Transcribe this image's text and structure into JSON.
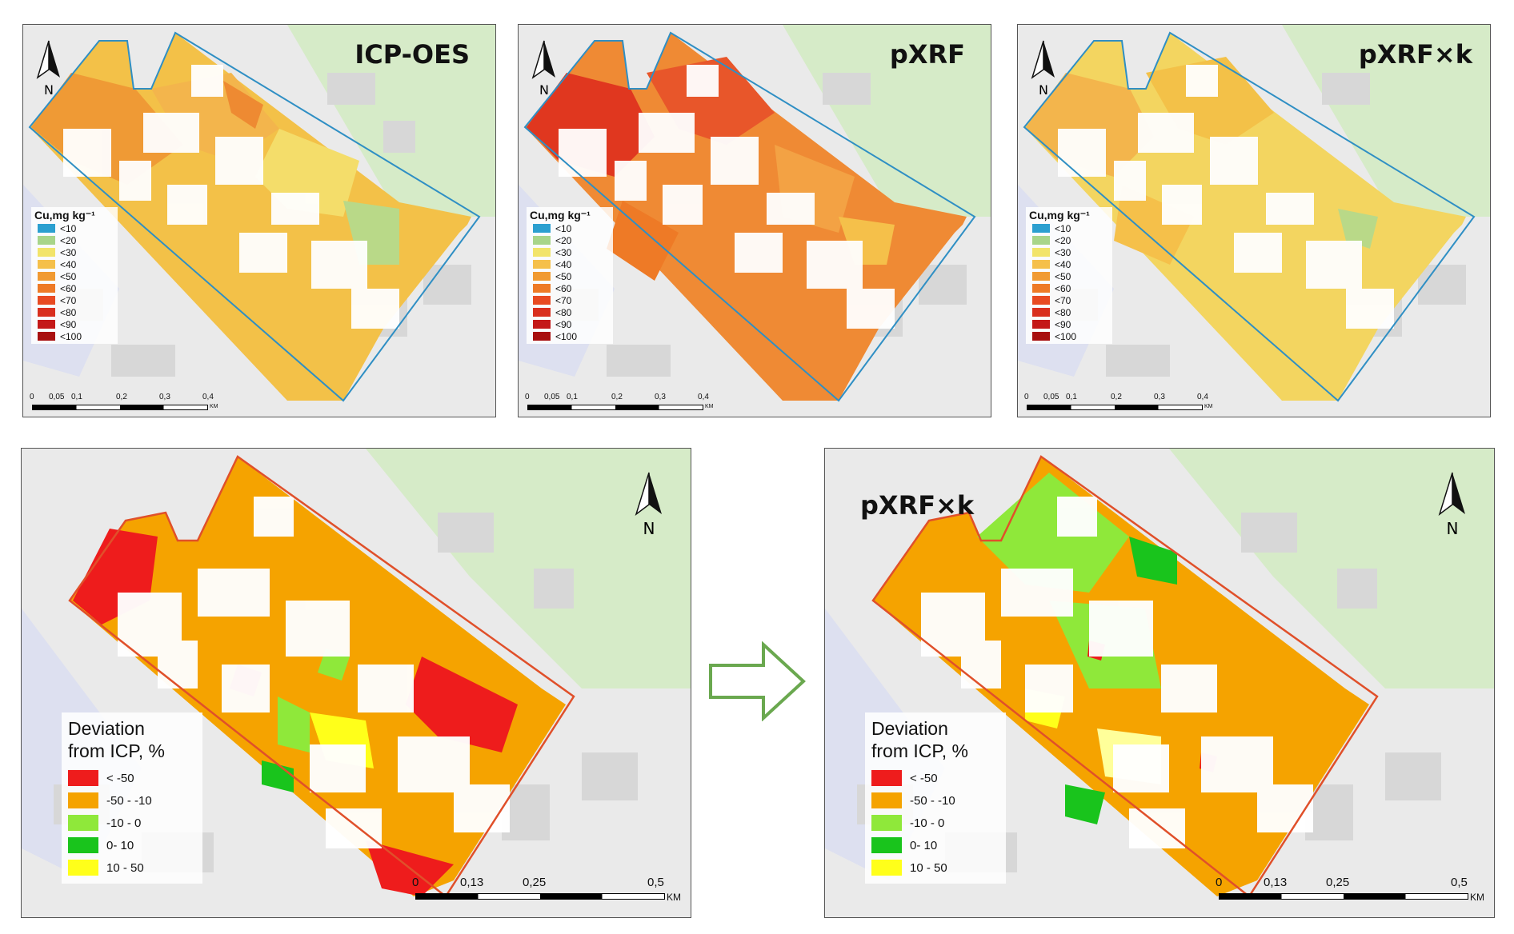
{
  "top_titles": [
    "ICP-OES",
    "pXRF",
    "pXRF×k"
  ],
  "bottom_right_title": "pXRF×k",
  "north_label": "N",
  "cu_legend": {
    "title": "Cu,mg kg⁻¹",
    "items": [
      {
        "label": "<10",
        "color": "#2b9fd0"
      },
      {
        "label": "<20",
        "color": "#a8d58a"
      },
      {
        "label": "<30",
        "color": "#f2e46a"
      },
      {
        "label": "<40",
        "color": "#f5c04a"
      },
      {
        "label": "<50",
        "color": "#f19a32"
      },
      {
        "label": "<60",
        "color": "#ee7a26"
      },
      {
        "label": "<70",
        "color": "#e84a22"
      },
      {
        "label": "<80",
        "color": "#d92f1e"
      },
      {
        "label": "<90",
        "color": "#c41818"
      },
      {
        "label": "<100",
        "color": "#a80f0f"
      }
    ]
  },
  "top_scale": {
    "ticks": [
      "0",
      "0,05",
      "0,1",
      "0,2",
      "0,3",
      "0,4"
    ],
    "unit": "KM"
  },
  "deviation_legend": {
    "title_line1": "Deviation",
    "title_line2": "from ICP, %",
    "items": [
      {
        "label": "< -50",
        "color": "#ee1c1c"
      },
      {
        "label": "-50 - -10",
        "color": "#f5a300"
      },
      {
        "label": "-10 - 0",
        "color": "#8fe83a"
      },
      {
        "label": "0- 10",
        "color": "#19c41c"
      },
      {
        "label": "10 - 50",
        "color": "#ffff1a"
      }
    ]
  },
  "bottom_scale": {
    "ticks": [
      "0",
      "0,13",
      "0,25",
      "0,5"
    ],
    "unit": "KM"
  },
  "colors": {
    "boundary_top": "#2f8fc4",
    "boundary_bottom": "#e0502a",
    "park": "#cfe8c0",
    "arrow": "#6aa84f"
  }
}
